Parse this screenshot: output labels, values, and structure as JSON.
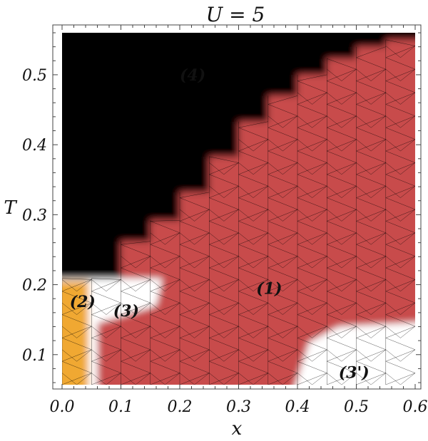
{
  "chart_data": {
    "type": "heatmap",
    "title": "U = 5",
    "xlabel": "x",
    "ylabel": "T",
    "xlim": [
      0.0,
      0.6
    ],
    "ylim": [
      0.057,
      0.56
    ],
    "x_ticks": [
      0.0,
      0.1,
      0.2,
      0.3,
      0.4,
      0.5,
      0.6
    ],
    "x_tick_labels": [
      "0.0",
      "0.1",
      "0.2",
      "0.3",
      "0.4",
      "0.5",
      "0.6"
    ],
    "y_ticks": [
      0.1,
      0.2,
      0.3,
      0.4,
      0.5
    ],
    "y_tick_labels": [
      "0.1",
      "0.2",
      "0.3",
      "0.4",
      "0.5"
    ],
    "colors": {
      "phase_1": "#c84b4b",
      "phase_2": "#f0a830",
      "phase_3": "#ffffff",
      "phase_3p": "#ffffff",
      "phase_4": "#000000"
    },
    "grid_x_step": 0.05,
    "grid_y_step": 0.0167,
    "phase_boundaries": {
      "phase_4_lower_edge": [
        {
          "x": 0.0,
          "T": 0.209
        },
        {
          "x": 0.05,
          "T": 0.209
        },
        {
          "x": 0.1,
          "T": 0.262
        },
        {
          "x": 0.15,
          "T": 0.292
        },
        {
          "x": 0.2,
          "T": 0.332
        },
        {
          "x": 0.25,
          "T": 0.383
        },
        {
          "x": 0.3,
          "T": 0.433
        },
        {
          "x": 0.35,
          "T": 0.47
        },
        {
          "x": 0.4,
          "T": 0.5
        },
        {
          "x": 0.45,
          "T": 0.523
        },
        {
          "x": 0.5,
          "T": 0.54
        },
        {
          "x": 0.55,
          "T": 0.55
        },
        {
          "x": 0.6,
          "T": 0.55
        }
      ],
      "phase_3_region": [
        {
          "x": 0.0,
          "T": 0.209
        },
        {
          "x": 0.17,
          "T": 0.209
        },
        {
          "x": 0.16,
          "T": 0.17
        },
        {
          "x": 0.06,
          "T": 0.145
        },
        {
          "x": 0.06,
          "T": 0.057
        },
        {
          "x": 0.0,
          "T": 0.057
        }
      ],
      "phase_2_region": [
        {
          "x": 0.0,
          "T": 0.205
        },
        {
          "x": 0.045,
          "T": 0.205
        },
        {
          "x": 0.045,
          "T": 0.057
        },
        {
          "x": 0.0,
          "T": 0.057
        }
      ],
      "phase_3p_region": [
        {
          "x": 0.6,
          "T": 0.148
        },
        {
          "x": 0.47,
          "T": 0.14
        },
        {
          "x": 0.42,
          "T": 0.118
        },
        {
          "x": 0.39,
          "T": 0.057
        },
        {
          "x": 0.6,
          "T": 0.057
        }
      ]
    },
    "annotations": [
      {
        "text": "(4)",
        "x": 0.2,
        "T": 0.5
      },
      {
        "text": "(1)",
        "x": 0.33,
        "T": 0.195
      },
      {
        "text": "(2)",
        "x": 0.013,
        "T": 0.176
      },
      {
        "text": "(3)",
        "x": 0.087,
        "T": 0.163
      },
      {
        "text": "(3')",
        "x": 0.47,
        "T": 0.075
      }
    ]
  }
}
